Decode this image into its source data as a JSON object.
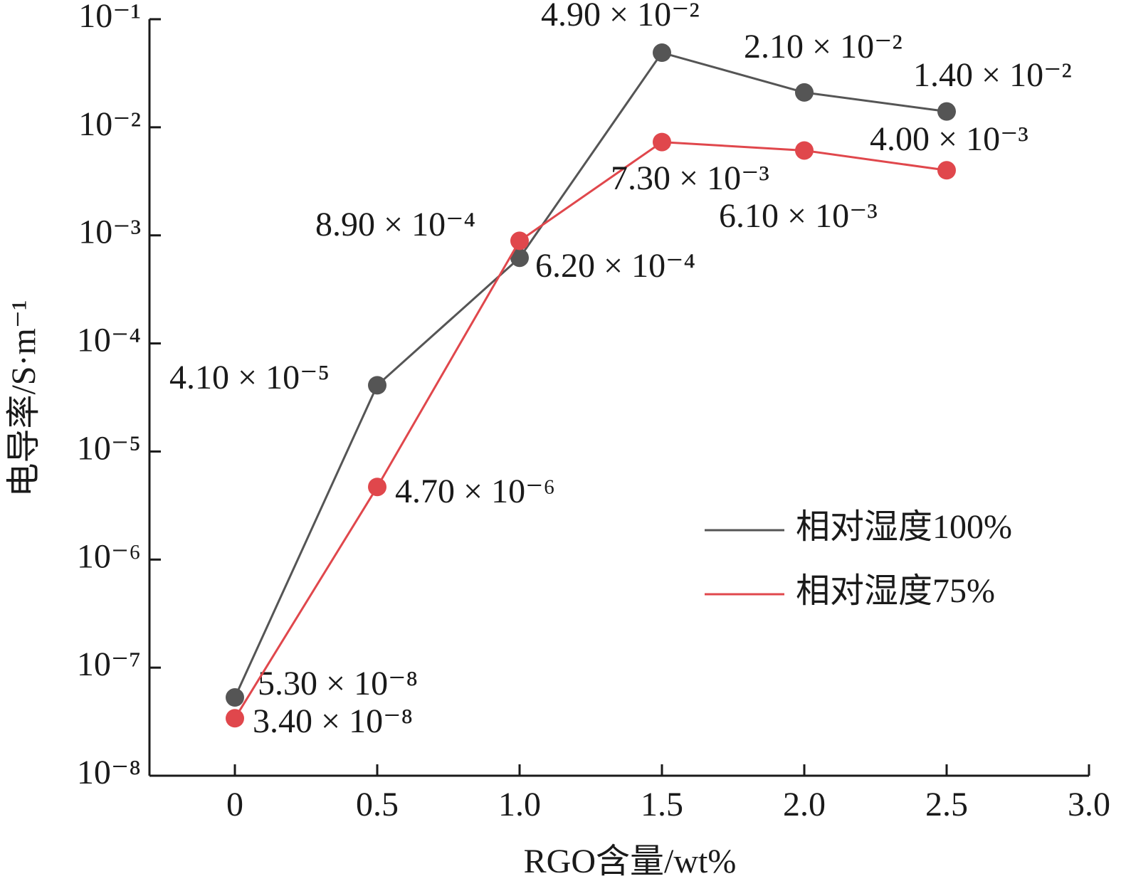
{
  "chart_data": {
    "type": "line",
    "x": [
      0,
      0.5,
      1,
      1.5,
      2,
      2.5
    ],
    "series": [
      {
        "name": "相对湿度100%",
        "color": "#555555",
        "values": [
          5.3e-08,
          4.1e-05,
          0.00062,
          0.049,
          0.021,
          0.014
        ],
        "value_labels": [
          "5.30 × 10⁻⁸",
          "4.10 × 10⁻⁵",
          "6.20 × 10⁻⁴",
          "4.90 × 10⁻²",
          "2.10 × 10⁻²",
          "1.40 × 10⁻²"
        ]
      },
      {
        "name": "相对湿度75%",
        "color": "#e0474c",
        "values": [
          3.4e-08,
          4.7e-06,
          0.00089,
          0.0073,
          0.0061,
          0.004
        ],
        "value_labels": [
          "3.40 × 10⁻⁸",
          "4.70 × 10⁻⁶",
          "8.90 × 10⁻⁴",
          "7.30 × 10⁻³",
          "6.10 × 10⁻³",
          "4.00 × 10⁻³"
        ]
      }
    ],
    "xlabel": "RGO含量/wt%",
    "ylabel": "电导率/S·m⁻¹",
    "xlim": [
      -0.3,
      3.0
    ],
    "xticks": [
      0,
      0.5,
      {
        "value": 1,
        "label": "1.0"
      },
      1.5,
      {
        "value": 2,
        "label": "2.0"
      },
      2.5,
      {
        "value": 3,
        "label": "3.0"
      }
    ],
    "ylim": [
      1e-08,
      0.1
    ],
    "yscale": "log",
    "yticks": [
      {
        "value": 1e-08,
        "label": "10⁻⁸"
      },
      {
        "value": 1e-07,
        "label": "10⁻⁷"
      },
      {
        "value": 1e-06,
        "label": "10⁻⁶"
      },
      {
        "value": 1e-05,
        "label": "10⁻⁵"
      },
      {
        "value": 0.0001,
        "label": "10⁻⁴"
      },
      {
        "value": 0.001,
        "label": "10⁻³"
      },
      {
        "value": 0.01,
        "label": "10⁻²"
      },
      {
        "value": 0.1,
        "label": "10⁻¹"
      }
    ]
  }
}
